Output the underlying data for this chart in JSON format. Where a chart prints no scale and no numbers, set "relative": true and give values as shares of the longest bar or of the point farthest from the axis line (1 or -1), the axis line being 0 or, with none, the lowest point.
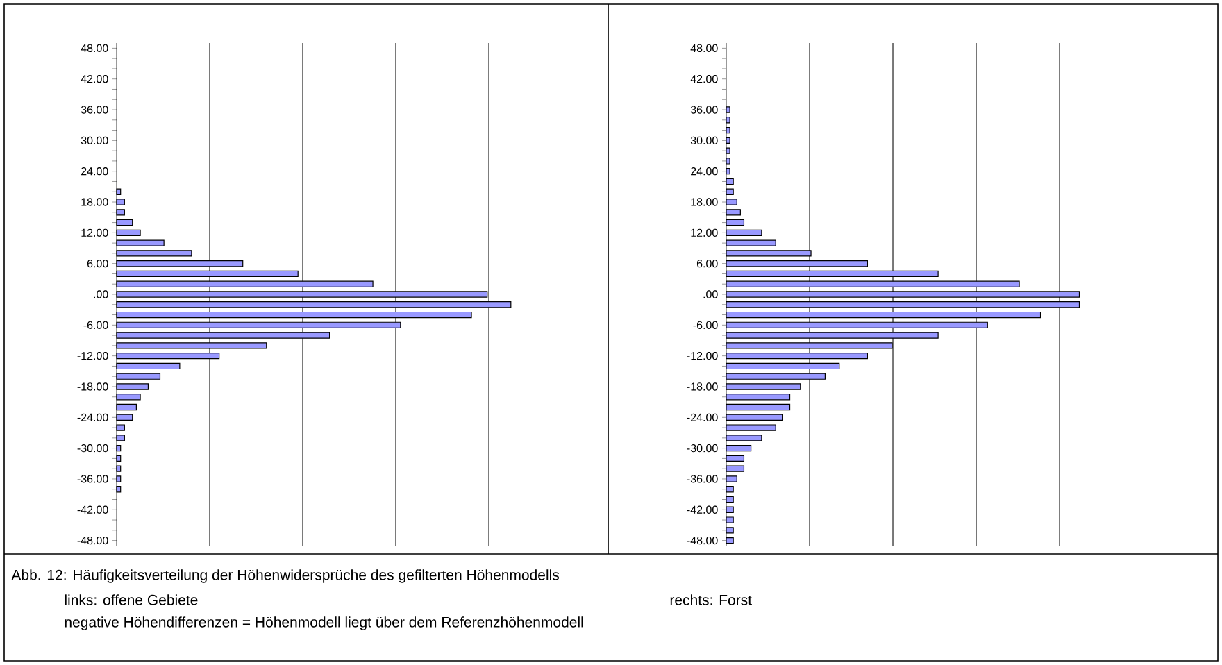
{
  "chart_data": [
    {
      "type": "bar",
      "orientation": "horizontal",
      "relative": true,
      "grid": "x",
      "color": "#9999ff",
      "x": [
        20,
        18,
        16,
        14,
        12,
        10,
        8,
        6,
        4,
        2,
        0,
        -2,
        -4,
        -6,
        -8,
        -10,
        -12,
        -14,
        -16,
        -18,
        -20,
        -22,
        -24,
        -26,
        -28,
        -30,
        -32,
        -34,
        -36,
        -38
      ],
      "values": [
        0.01,
        0.02,
        0.02,
        0.04,
        0.06,
        0.12,
        0.19,
        0.32,
        0.46,
        0.65,
        0.94,
        1,
        0.9,
        0.72,
        0.54,
        0.38,
        0.26,
        0.16,
        0.11,
        0.08,
        0.06,
        0.05,
        0.04,
        0.02,
        0.02,
        0.01,
        0.01,
        0.01,
        0.01,
        0.01
      ],
      "ylim": [
        -49,
        49
      ],
      "yticks": [
        {
          "value": -48,
          "label": "-48.00"
        },
        {
          "value": -46,
          "label": null
        },
        {
          "value": -44,
          "label": null
        },
        {
          "value": -42,
          "label": "-42.00"
        },
        {
          "value": -40,
          "label": null
        },
        {
          "value": -38,
          "label": null
        },
        {
          "value": -36,
          "label": "-36.00"
        },
        {
          "value": -34,
          "label": null
        },
        {
          "value": -32,
          "label": null
        },
        {
          "value": -30,
          "label": "-30.00"
        },
        {
          "value": -28,
          "label": null
        },
        {
          "value": -26,
          "label": null
        },
        {
          "value": -24,
          "label": "-24.00"
        },
        {
          "value": -22,
          "label": null
        },
        {
          "value": -20,
          "label": null
        },
        {
          "value": -18,
          "label": "-18.00"
        },
        {
          "value": -16,
          "label": null
        },
        {
          "value": -14,
          "label": null
        },
        {
          "value": -12,
          "label": "-12.00"
        },
        {
          "value": -10,
          "label": null
        },
        {
          "value": -8,
          "label": null
        },
        {
          "value": -6,
          "label": "-6.00"
        },
        {
          "value": -4,
          "label": null
        },
        {
          "value": -2,
          "label": null
        },
        {
          "value": 0,
          "label": ".00"
        },
        {
          "value": 2,
          "label": null
        },
        {
          "value": 4,
          "label": null
        },
        {
          "value": 6,
          "label": "6.00"
        },
        {
          "value": 8,
          "label": null
        },
        {
          "value": 10,
          "label": null
        },
        {
          "value": 12,
          "label": "12.00"
        },
        {
          "value": 14,
          "label": null
        },
        {
          "value": 16,
          "label": null
        },
        {
          "value": 18,
          "label": "18.00"
        },
        {
          "value": 20,
          "label": null
        },
        {
          "value": 22,
          "label": null
        },
        {
          "value": 24,
          "label": "24.00"
        },
        {
          "value": 26,
          "label": null
        },
        {
          "value": 28,
          "label": null
        },
        {
          "value": 30,
          "label": "30.00"
        },
        {
          "value": 32,
          "label": null
        },
        {
          "value": 34,
          "label": null
        },
        {
          "value": 36,
          "label": "36.00"
        },
        {
          "value": 38,
          "label": null
        },
        {
          "value": 40,
          "label": null
        },
        {
          "value": 42,
          "label": "42.00"
        },
        {
          "value": 44,
          "label": null
        },
        {
          "value": 46,
          "label": null
        },
        {
          "value": 48,
          "label": "48.00"
        }
      ],
      "annotations": [
        "Abb. 12: Häufigkeitsverteilung der Höhenwidersprüche des gefilterten Höhenmodells",
        "links: offene Gebiete",
        "negative Höhendifferenzen = Höhenmodell liegt über dem Referenzhöhenmodell"
      ]
    },
    {
      "type": "bar",
      "orientation": "horizontal",
      "relative": true,
      "grid": "x",
      "color": "#9999ff",
      "x": [
        36,
        34,
        32,
        30,
        28,
        26,
        24,
        22,
        20,
        18,
        16,
        14,
        12,
        10,
        8,
        6,
        4,
        2,
        0,
        -2,
        -4,
        -6,
        -8,
        -10,
        -12,
        -14,
        -16,
        -18,
        -20,
        -22,
        -24,
        -26,
        -28,
        -30,
        -32,
        -34,
        -36,
        -38,
        -40,
        -42,
        -44,
        -46,
        -48
      ],
      "values": [
        0.01,
        0.01,
        0.01,
        0.01,
        0.01,
        0.01,
        0.01,
        0.02,
        0.02,
        0.03,
        0.04,
        0.05,
        0.1,
        0.14,
        0.24,
        0.4,
        0.6,
        0.83,
        1,
        1,
        0.89,
        0.74,
        0.6,
        0.47,
        0.4,
        0.32,
        0.28,
        0.21,
        0.18,
        0.18,
        0.16,
        0.14,
        0.1,
        0.07,
        0.05,
        0.05,
        0.03,
        0.02,
        0.02,
        0.02,
        0.02,
        0.02,
        0.02
      ],
      "ylim": [
        -49,
        49
      ],
      "yticks": [
        {
          "value": -48,
          "label": "-48.00"
        },
        {
          "value": -46,
          "label": null
        },
        {
          "value": -44,
          "label": null
        },
        {
          "value": -42,
          "label": "-42.00"
        },
        {
          "value": -40,
          "label": null
        },
        {
          "value": -38,
          "label": null
        },
        {
          "value": -36,
          "label": "-36.00"
        },
        {
          "value": -34,
          "label": null
        },
        {
          "value": -32,
          "label": null
        },
        {
          "value": -30,
          "label": "-30.00"
        },
        {
          "value": -28,
          "label": null
        },
        {
          "value": -26,
          "label": null
        },
        {
          "value": -24,
          "label": "-24.00"
        },
        {
          "value": -22,
          "label": null
        },
        {
          "value": -20,
          "label": null
        },
        {
          "value": -18,
          "label": "-18.00"
        },
        {
          "value": -16,
          "label": null
        },
        {
          "value": -14,
          "label": null
        },
        {
          "value": -12,
          "label": "-12.00"
        },
        {
          "value": -10,
          "label": null
        },
        {
          "value": -8,
          "label": null
        },
        {
          "value": -6,
          "label": "-6.00"
        },
        {
          "value": -4,
          "label": null
        },
        {
          "value": -2,
          "label": null
        },
        {
          "value": 0,
          "label": ".00"
        },
        {
          "value": 2,
          "label": null
        },
        {
          "value": 4,
          "label": null
        },
        {
          "value": 6,
          "label": "6.00"
        },
        {
          "value": 8,
          "label": null
        },
        {
          "value": 10,
          "label": null
        },
        {
          "value": 12,
          "label": "12.00"
        },
        {
          "value": 14,
          "label": null
        },
        {
          "value": 16,
          "label": null
        },
        {
          "value": 18,
          "label": "18.00"
        },
        {
          "value": 20,
          "label": null
        },
        {
          "value": 22,
          "label": null
        },
        {
          "value": 24,
          "label": "24.00"
        },
        {
          "value": 26,
          "label": null
        },
        {
          "value": 28,
          "label": null
        },
        {
          "value": 30,
          "label": "30.00"
        },
        {
          "value": 32,
          "label": null
        },
        {
          "value": 34,
          "label": null
        },
        {
          "value": 36,
          "label": "36.00"
        },
        {
          "value": 38,
          "label": null
        },
        {
          "value": 40,
          "label": null
        },
        {
          "value": 42,
          "label": "42.00"
        },
        {
          "value": 44,
          "label": null
        },
        {
          "value": 46,
          "label": null
        },
        {
          "value": 48,
          "label": "48.00"
        }
      ],
      "annotations": [
        "rechts: Forst"
      ]
    }
  ]
}
